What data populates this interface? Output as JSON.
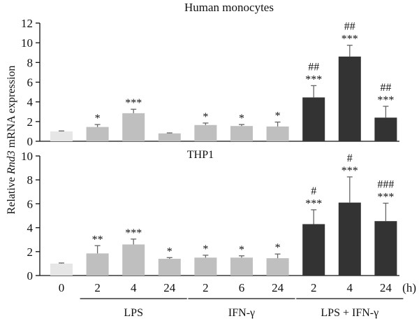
{
  "chart_data": {
    "type": "bar",
    "title": "Human monocytes",
    "ylabel_parts": [
      "Relative ",
      "Rnd3",
      " mRNA expression"
    ],
    "x_unit": "(h)",
    "categories": [
      "0",
      "2",
      "4",
      "24",
      "2",
      "6",
      "24",
      "2",
      "4",
      "24"
    ],
    "bar_groups": [
      "control",
      "LPS",
      "LPS",
      "LPS",
      "IFN",
      "IFN",
      "IFN",
      "COMBO",
      "COMBO",
      "COMBO"
    ],
    "group_labels": [
      {
        "text": "LPS",
        "from": 1,
        "to": 3
      },
      {
        "text": "IFN-γ",
        "from": 4,
        "to": 6
      },
      {
        "text": "LPS + IFN-γ",
        "from": 7,
        "to": 9
      }
    ],
    "colors": {
      "control": "#e6e6e6",
      "LPS": "#bfbfbf",
      "IFN": "#bfbfbf",
      "COMBO": "#333333"
    },
    "panels": [
      {
        "label": "",
        "ylim": [
          0,
          12
        ],
        "yticks": [
          0,
          2,
          4,
          6,
          8,
          10,
          12
        ],
        "values": [
          1.0,
          1.45,
          2.85,
          0.8,
          1.65,
          1.55,
          1.5,
          4.45,
          8.6,
          2.4
        ],
        "errors": [
          0.05,
          0.25,
          0.4,
          0.05,
          0.2,
          0.15,
          0.45,
          1.2,
          1.15,
          1.15
        ],
        "stars": [
          "",
          "*",
          "***",
          "",
          "*",
          "*",
          "*",
          "***",
          "***",
          "***"
        ],
        "hashes": [
          "",
          "",
          "",
          "",
          "",
          "",
          "",
          "##",
          "##",
          "##"
        ]
      },
      {
        "label": "THP1",
        "ylim": [
          0,
          10
        ],
        "yticks": [
          0,
          2,
          4,
          6,
          8,
          10
        ],
        "values": [
          1.0,
          1.85,
          2.6,
          1.4,
          1.5,
          1.5,
          1.45,
          4.3,
          6.1,
          4.55
        ],
        "errors": [
          0.05,
          0.65,
          0.45,
          0.1,
          0.2,
          0.15,
          0.35,
          1.2,
          2.15,
          1.5
        ],
        "stars": [
          "",
          "**",
          "***",
          "*",
          "*",
          "*",
          "*",
          "***",
          "***",
          "***"
        ],
        "hashes": [
          "",
          "",
          "",
          "",
          "",
          "",
          "",
          "#",
          "#",
          "###"
        ]
      }
    ]
  }
}
